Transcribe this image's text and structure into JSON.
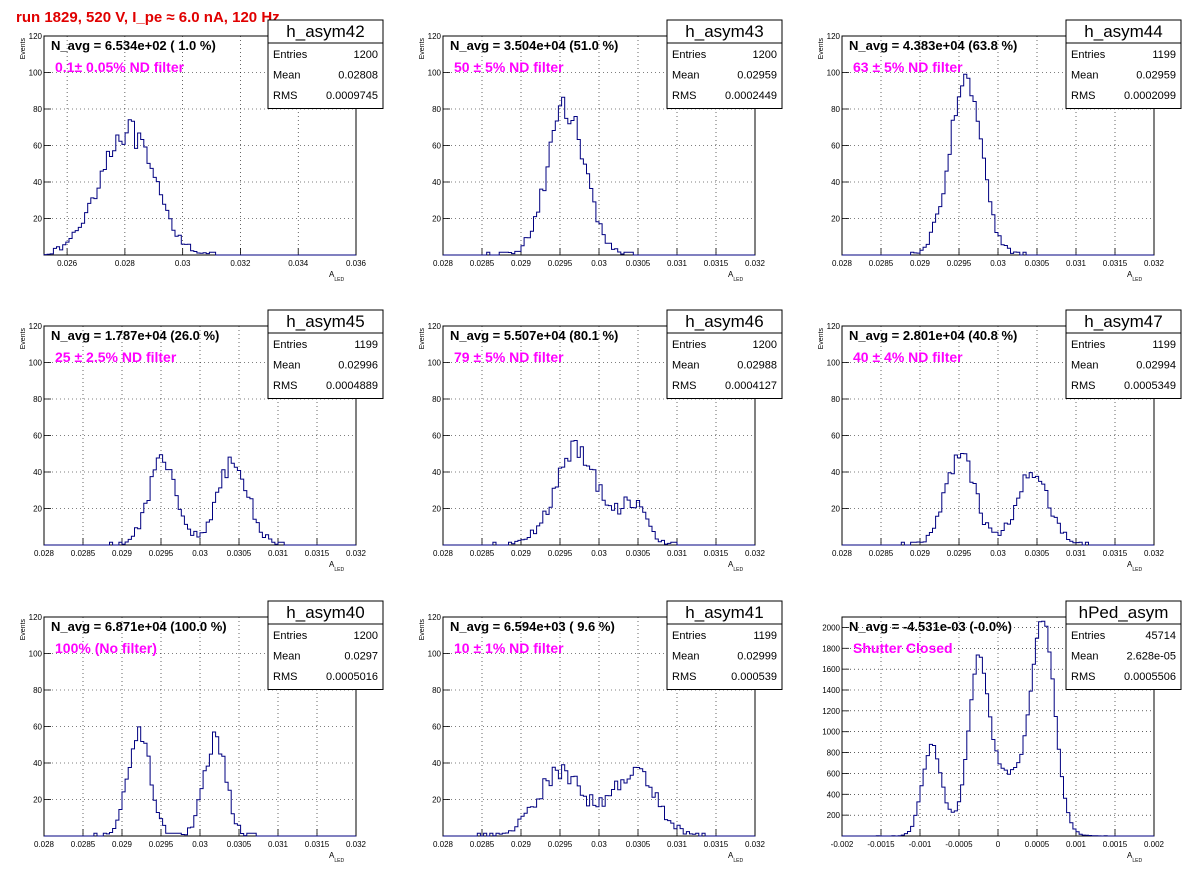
{
  "page_title": "run 1829,   520 V, I_pe ≈ 6.0 nA, 120 Hz",
  "colors": {
    "line": "#000080",
    "label": "#ff00ff",
    "title": "#e00000",
    "grid": "#000000"
  },
  "chart_data": [
    {
      "type": "histogram",
      "hist": "h_asym42",
      "n_avg": "N_avg = 6.534e+02 ( 1.0 %)",
      "label": "0.1± 0.05% ND filter",
      "stats": {
        "Entries": "1200",
        "Mean": "0.02808",
        "RMS": "0.0009745"
      },
      "xlim": [
        0.0252,
        0.036
      ],
      "ylim": [
        0,
        120
      ],
      "xticks": [
        "0.026",
        "0.028",
        "0.03",
        "0.032",
        "0.034",
        "0.036"
      ],
      "yticks": [
        "20",
        "40",
        "60",
        "80",
        "100",
        "120"
      ],
      "ylabel": "Events",
      "xlabel": "A",
      "xlabel_sub": "LED",
      "peaks": [
        {
          "mu": 0.02805,
          "sigma": 0.00095,
          "amp": 68
        }
      ]
    },
    {
      "type": "histogram",
      "hist": "h_asym43",
      "n_avg": "N_avg = 3.504e+04 (51.0 %)",
      "label": "50 ± 5% ND filter",
      "stats": {
        "Entries": "1200",
        "Mean": "0.02959",
        "RMS": "0.0002449"
      },
      "xlim": [
        0.028,
        0.032
      ],
      "ylim": [
        0,
        120
      ],
      "xticks": [
        "0.028",
        "0.0285",
        "0.029",
        "0.0295",
        "0.03",
        "0.0305",
        "0.031",
        "0.0315",
        "0.032"
      ],
      "yticks": [
        "20",
        "40",
        "60",
        "80",
        "100",
        "120"
      ],
      "ylabel": "Events",
      "xlabel": "A",
      "xlabel_sub": "LED",
      "peaks": [
        {
          "mu": 0.02958,
          "sigma": 0.00024,
          "amp": 80
        }
      ]
    },
    {
      "type": "histogram",
      "hist": "h_asym44",
      "n_avg": "N_avg = 4.383e+04 (63.8 %)",
      "label": "63 ± 5% ND filter",
      "stats": {
        "Entries": "1199",
        "Mean": "0.02959",
        "RMS": "0.0002099"
      },
      "xlim": [
        0.028,
        0.032
      ],
      "ylim": [
        0,
        120
      ],
      "xticks": [
        "0.028",
        "0.0285",
        "0.029",
        "0.0295",
        "0.03",
        "0.0305",
        "0.031",
        "0.0315",
        "0.032"
      ],
      "yticks": [
        "20",
        "40",
        "60",
        "80",
        "100",
        "120"
      ],
      "ylabel": "Events",
      "xlabel": "A",
      "xlabel_sub": "LED",
      "peaks": [
        {
          "mu": 0.02958,
          "sigma": 0.00021,
          "amp": 92
        }
      ]
    },
    {
      "type": "histogram",
      "hist": "h_asym45",
      "n_avg": "N_avg = 1.787e+04 (26.0 %)",
      "label": "25 ± 2.5% ND filter",
      "stats": {
        "Entries": "1199",
        "Mean": "0.02996",
        "RMS": "0.0004889"
      },
      "xlim": [
        0.028,
        0.032
      ],
      "ylim": [
        0,
        120
      ],
      "xticks": [
        "0.028",
        "0.0285",
        "0.029",
        "0.0295",
        "0.03",
        "0.0305",
        "0.031",
        "0.0315",
        "0.032"
      ],
      "yticks": [
        "20",
        "40",
        "60",
        "80",
        "100",
        "120"
      ],
      "ylabel": "Events",
      "xlabel": "A",
      "xlabel_sub": "LED",
      "peaks": [
        {
          "mu": 0.02952,
          "sigma": 0.00018,
          "amp": 48
        },
        {
          "mu": 0.03042,
          "sigma": 0.0002,
          "amp": 44
        }
      ]
    },
    {
      "type": "histogram",
      "hist": "h_asym46",
      "n_avg": "N_avg = 5.507e+04 (80.1 %)",
      "label": "79 ± 5% ND filter",
      "stats": {
        "Entries": "1200",
        "Mean": "0.02988",
        "RMS": "0.0004127"
      },
      "xlim": [
        0.028,
        0.032
      ],
      "ylim": [
        0,
        120
      ],
      "xticks": [
        "0.028",
        "0.0285",
        "0.029",
        "0.0295",
        "0.03",
        "0.0305",
        "0.031",
        "0.0315",
        "0.032"
      ],
      "yticks": [
        "20",
        "40",
        "60",
        "80",
        "100",
        "120"
      ],
      "ylabel": "Events",
      "xlabel": "A",
      "xlabel_sub": "LED",
      "peaks": [
        {
          "mu": 0.02972,
          "sigma": 0.00028,
          "amp": 52
        },
        {
          "mu": 0.03045,
          "sigma": 0.00017,
          "amp": 22
        }
      ]
    },
    {
      "type": "histogram",
      "hist": "h_asym47",
      "n_avg": "N_avg = 2.801e+04 (40.8 %)",
      "label": "40 ± 4% ND filter",
      "stats": {
        "Entries": "1199",
        "Mean": "0.02994",
        "RMS": "0.0005349"
      },
      "xlim": [
        0.028,
        0.032
      ],
      "ylim": [
        0,
        120
      ],
      "xticks": [
        "0.028",
        "0.0285",
        "0.029",
        "0.0295",
        "0.03",
        "0.0305",
        "0.031",
        "0.0315",
        "0.032"
      ],
      "yticks": [
        "20",
        "40",
        "60",
        "80",
        "100",
        "120"
      ],
      "ylabel": "Events",
      "xlabel": "A",
      "xlabel_sub": "LED",
      "peaks": [
        {
          "mu": 0.02952,
          "sigma": 0.00019,
          "amp": 48
        },
        {
          "mu": 0.03045,
          "sigma": 0.0002,
          "amp": 42
        }
      ]
    },
    {
      "type": "histogram",
      "hist": "h_asym40",
      "n_avg": "N_avg = 6.871e+04 (100.0 %)",
      "label": "100% (No filter)",
      "stats": {
        "Entries": "1200",
        "Mean": "0.0297",
        "RMS": "0.0005016"
      },
      "xlim": [
        0.028,
        0.032
      ],
      "ylim": [
        0,
        120
      ],
      "xticks": [
        "0.028",
        "0.0285",
        "0.029",
        "0.0295",
        "0.03",
        "0.0305",
        "0.031",
        "0.0315",
        "0.032"
      ],
      "yticks": [
        "20",
        "40",
        "60",
        "80",
        "100",
        "120"
      ],
      "ylabel": "Events",
      "xlabel": "A",
      "xlabel_sub": "LED",
      "peaks": [
        {
          "mu": 0.02922,
          "sigma": 0.00014,
          "amp": 58
        },
        {
          "mu": 0.03019,
          "sigma": 0.00014,
          "amp": 54
        }
      ]
    },
    {
      "type": "histogram",
      "hist": "h_asym41",
      "n_avg": "N_avg = 6.594e+03 ( 9.6 %)",
      "label": "10 ± 1% ND filter",
      "stats": {
        "Entries": "1199",
        "Mean": "0.02999",
        "RMS": "0.000539"
      },
      "xlim": [
        0.028,
        0.032
      ],
      "ylim": [
        0,
        120
      ],
      "xticks": [
        "0.028",
        "0.0285",
        "0.029",
        "0.0295",
        "0.03",
        "0.0305",
        "0.031",
        "0.0315",
        "0.032"
      ],
      "yticks": [
        "20",
        "40",
        "60",
        "80",
        "100",
        "120"
      ],
      "ylabel": "Events",
      "xlabel": "A",
      "xlabel_sub": "LED",
      "peaks": [
        {
          "mu": 0.0295,
          "sigma": 0.0003,
          "amp": 34
        },
        {
          "mu": 0.03045,
          "sigma": 0.00028,
          "amp": 34
        }
      ]
    },
    {
      "type": "histogram",
      "hist": "hPed_asym",
      "n_avg": "N_avg = -4.531e-03 (-0.0%)",
      "label": "Shutter Closed",
      "stats": {
        "Entries": "45714",
        "Mean": "2.628e-05",
        "RMS": "0.0005506"
      },
      "xlim": [
        -0.002,
        0.002
      ],
      "ylim": [
        0,
        2100
      ],
      "xticks": [
        "-0.002",
        "-0.0015",
        "-0.001",
        "-0.0005",
        "0",
        "0.0005",
        "0.001",
        "0.0015",
        "0.002"
      ],
      "yticks": [
        "200",
        "400",
        "600",
        "800",
        "1000",
        "1200",
        "1400",
        "1600",
        "1800",
        "2000"
      ],
      "ylabel": "",
      "xlabel": "A",
      "xlabel_sub": "LED",
      "peaks": [
        {
          "mu": -0.00085,
          "sigma": 0.00012,
          "amp": 850
        },
        {
          "mu": -0.00025,
          "sigma": 0.00012,
          "amp": 1300
        },
        {
          "mu": 0.00058,
          "sigma": 0.00015,
          "amp": 1900
        },
        {
          "mu": 5e-05,
          "sigma": 0.00035,
          "amp": 600
        }
      ]
    }
  ]
}
